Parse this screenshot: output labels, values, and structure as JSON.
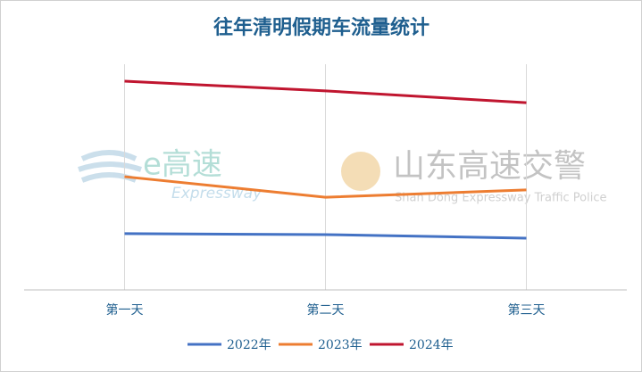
{
  "chart_data": {
    "type": "line",
    "title": "往年清明假期车流量统计",
    "categories": [
      "第一天",
      "第二天",
      "第三天"
    ],
    "series": [
      {
        "name": "2022年",
        "color": "#4472c4",
        "values": [
          23.8,
          23.4,
          21.9
        ]
      },
      {
        "name": "2023年",
        "color": "#ed7d31",
        "values": [
          47.9,
          39.2,
          42.3
        ]
      },
      {
        "name": "2024年",
        "color": "#c0152f",
        "values": [
          88.3,
          84.2,
          79.2
        ]
      }
    ],
    "ylim": [
      0,
      100
    ],
    "grid": true,
    "legend": "bottom",
    "watermarks": [
      "e高速",
      "Expressway",
      "山东高速交警",
      "Shan Dong Expressway Traffic Police"
    ]
  }
}
